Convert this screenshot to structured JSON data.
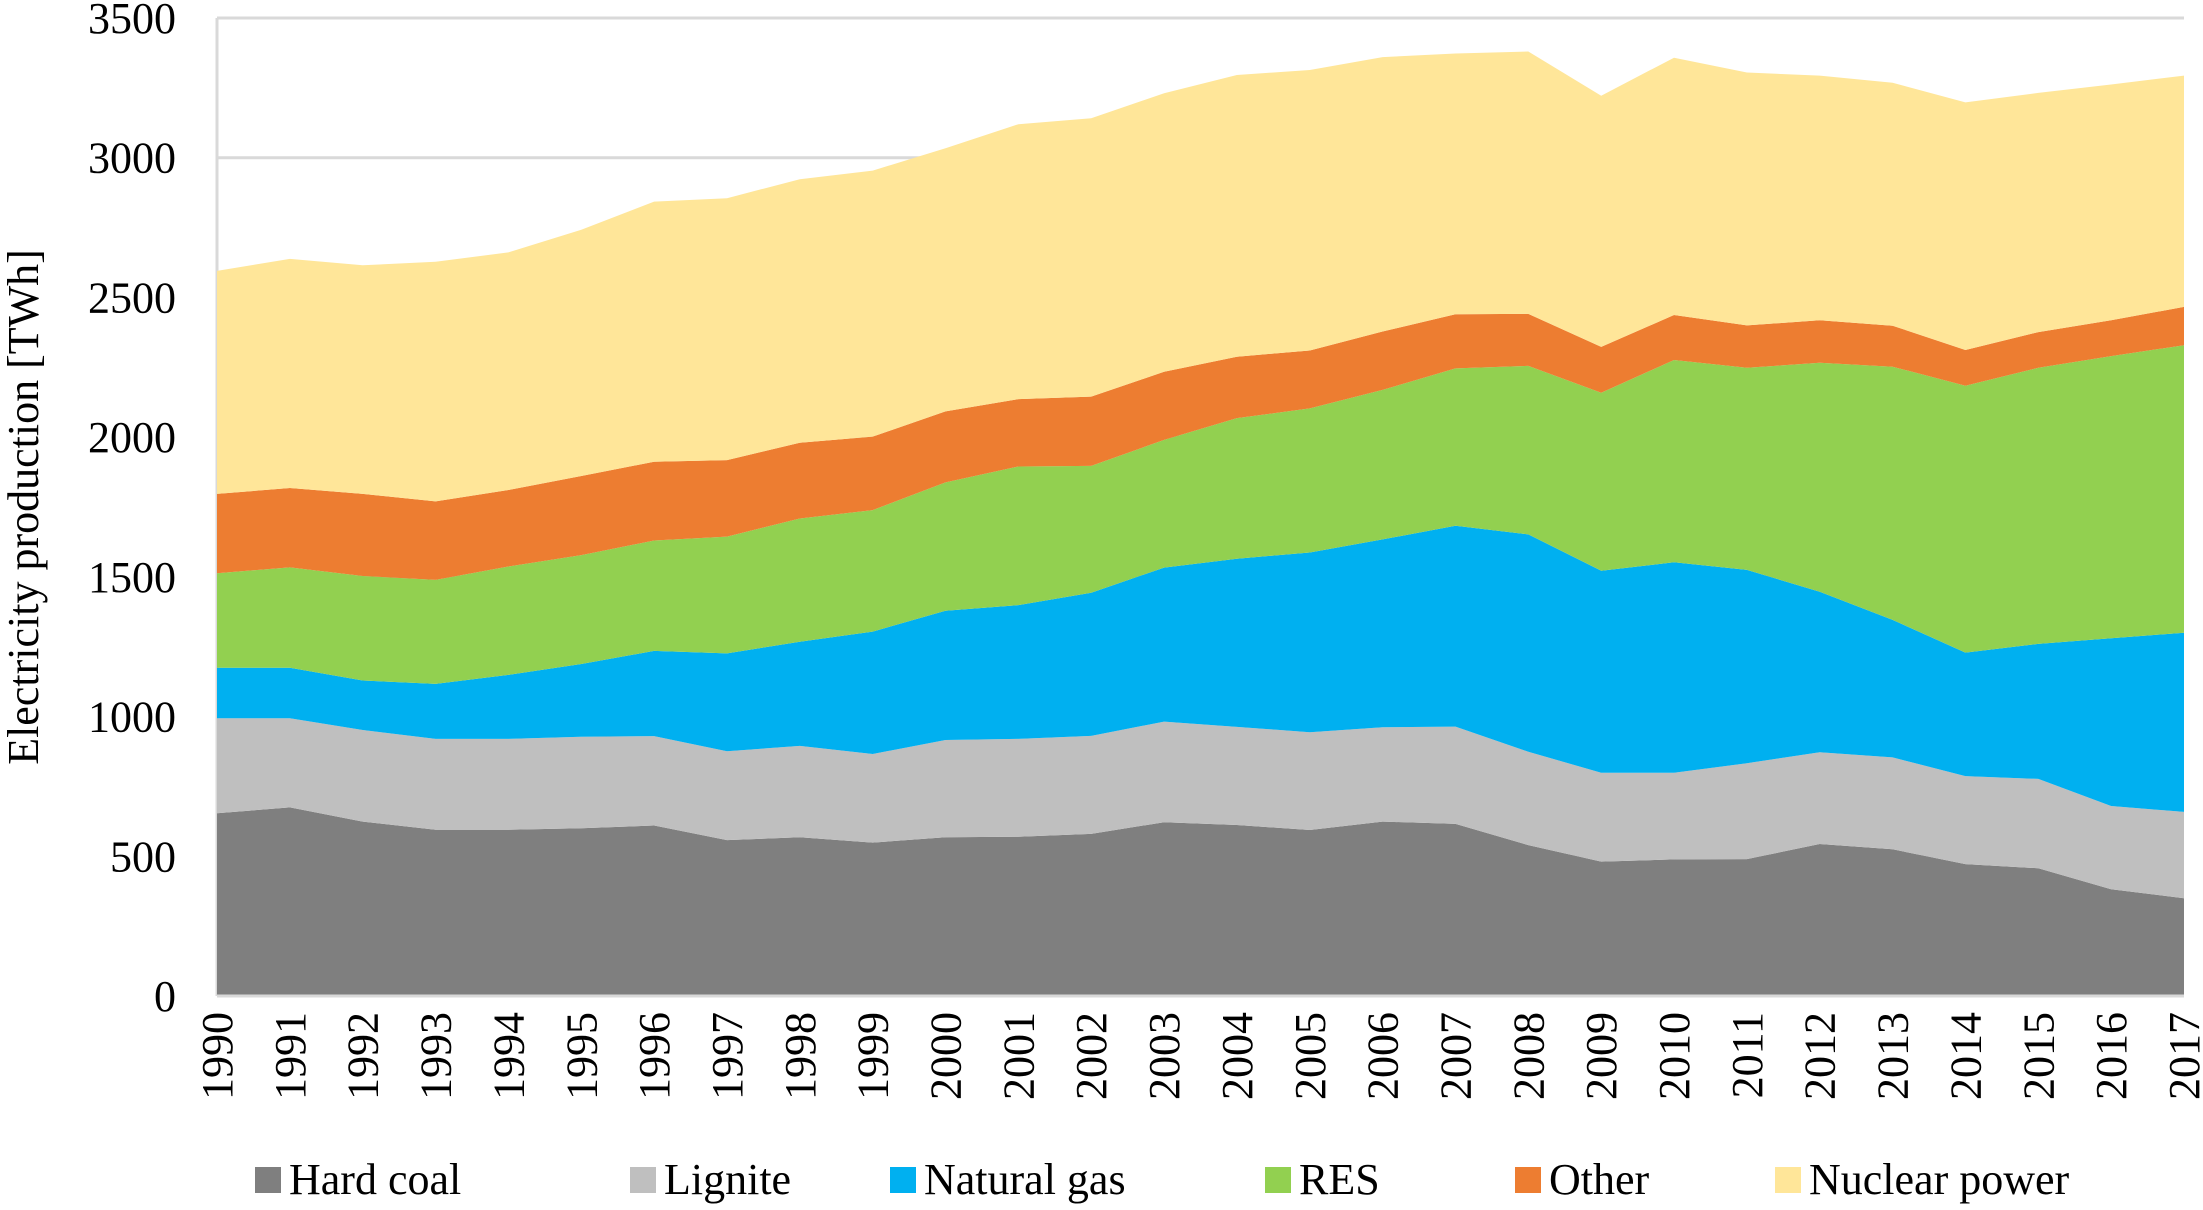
{
  "chart_data": {
    "type": "area",
    "stacked": true,
    "title": "",
    "xlabel": "",
    "ylabel": "Electricity production [TWh]",
    "ylim": [
      0,
      3500
    ],
    "yticks": [
      0,
      500,
      1000,
      1500,
      2000,
      2500,
      3000,
      3500
    ],
    "ytick_labels": [
      "0",
      "500",
      "1000",
      "1500",
      "2000",
      "2500",
      "3000",
      "3500"
    ],
    "grid": "horizontal",
    "legend_position": "bottom",
    "categories": [
      "1990",
      "1991",
      "1992",
      "1993",
      "1994",
      "1995",
      "1996",
      "1997",
      "1998",
      "1999",
      "2000",
      "2001",
      "2002",
      "2003",
      "2004",
      "2005",
      "2006",
      "2007",
      "2008",
      "2009",
      "2010",
      "2011",
      "2012",
      "2013",
      "2014",
      "2015",
      "2016",
      "2017"
    ],
    "series": [
      {
        "name": "Hard coal",
        "color": "#7f7f7f",
        "values": [
          654,
          675,
          624,
          595,
          595,
          600,
          610,
          558,
          568,
          549,
          568,
          570,
          580,
          622,
          612,
          594,
          624,
          616,
          540,
          481,
          489,
          490,
          544,
          525,
          472,
          457,
          382,
          350
        ]
      },
      {
        "name": "Lignite",
        "color": "#bfbfbf",
        "values": [
          340,
          319,
          328,
          325,
          325,
          328,
          320,
          318,
          327,
          317,
          348,
          350,
          351,
          360,
          351,
          350,
          338,
          348,
          334,
          318,
          310,
          343,
          328,
          329,
          315,
          320,
          298,
          309
        ]
      },
      {
        "name": "Natural gas",
        "color": "#00b0f0",
        "values": [
          181,
          181,
          177,
          197,
          229,
          260,
          305,
          350,
          373,
          438,
          463,
          479,
          512,
          551,
          602,
          643,
          672,
          719,
          778,
          723,
          753,
          692,
          575,
          492,
          442,
          483,
          600,
          641
        ]
      },
      {
        "name": "RES",
        "color": "#92d050",
        "values": [
          338,
          359,
          374,
          372,
          388,
          390,
          395,
          418,
          441,
          435,
          459,
          496,
          454,
          457,
          503,
          516,
          535,
          563,
          603,
          637,
          724,
          723,
          819,
          906,
          955,
          988,
          1010,
          1029
        ]
      },
      {
        "name": "Other",
        "color": "#ed7d31",
        "values": [
          284,
          284,
          294,
          281,
          274,
          283,
          282,
          274,
          271,
          263,
          254,
          241,
          248,
          244,
          220,
          207,
          209,
          194,
          186,
          164,
          161,
          152,
          152,
          147,
          128,
          128,
          128,
          137
        ]
      },
      {
        "name": "Nuclear power",
        "color": "#ffe699",
        "values": [
          798,
          820,
          818,
          858,
          850,
          881,
          931,
          937,
          943,
          952,
          942,
          984,
          996,
          997,
          1008,
          1004,
          982,
          933,
          939,
          899,
          921,
          905,
          876,
          869,
          886,
          856,
          844,
          828
        ]
      }
    ]
  },
  "colors": {
    "grid": "#d9d9d9",
    "text": "#000000",
    "background": "#ffffff"
  }
}
